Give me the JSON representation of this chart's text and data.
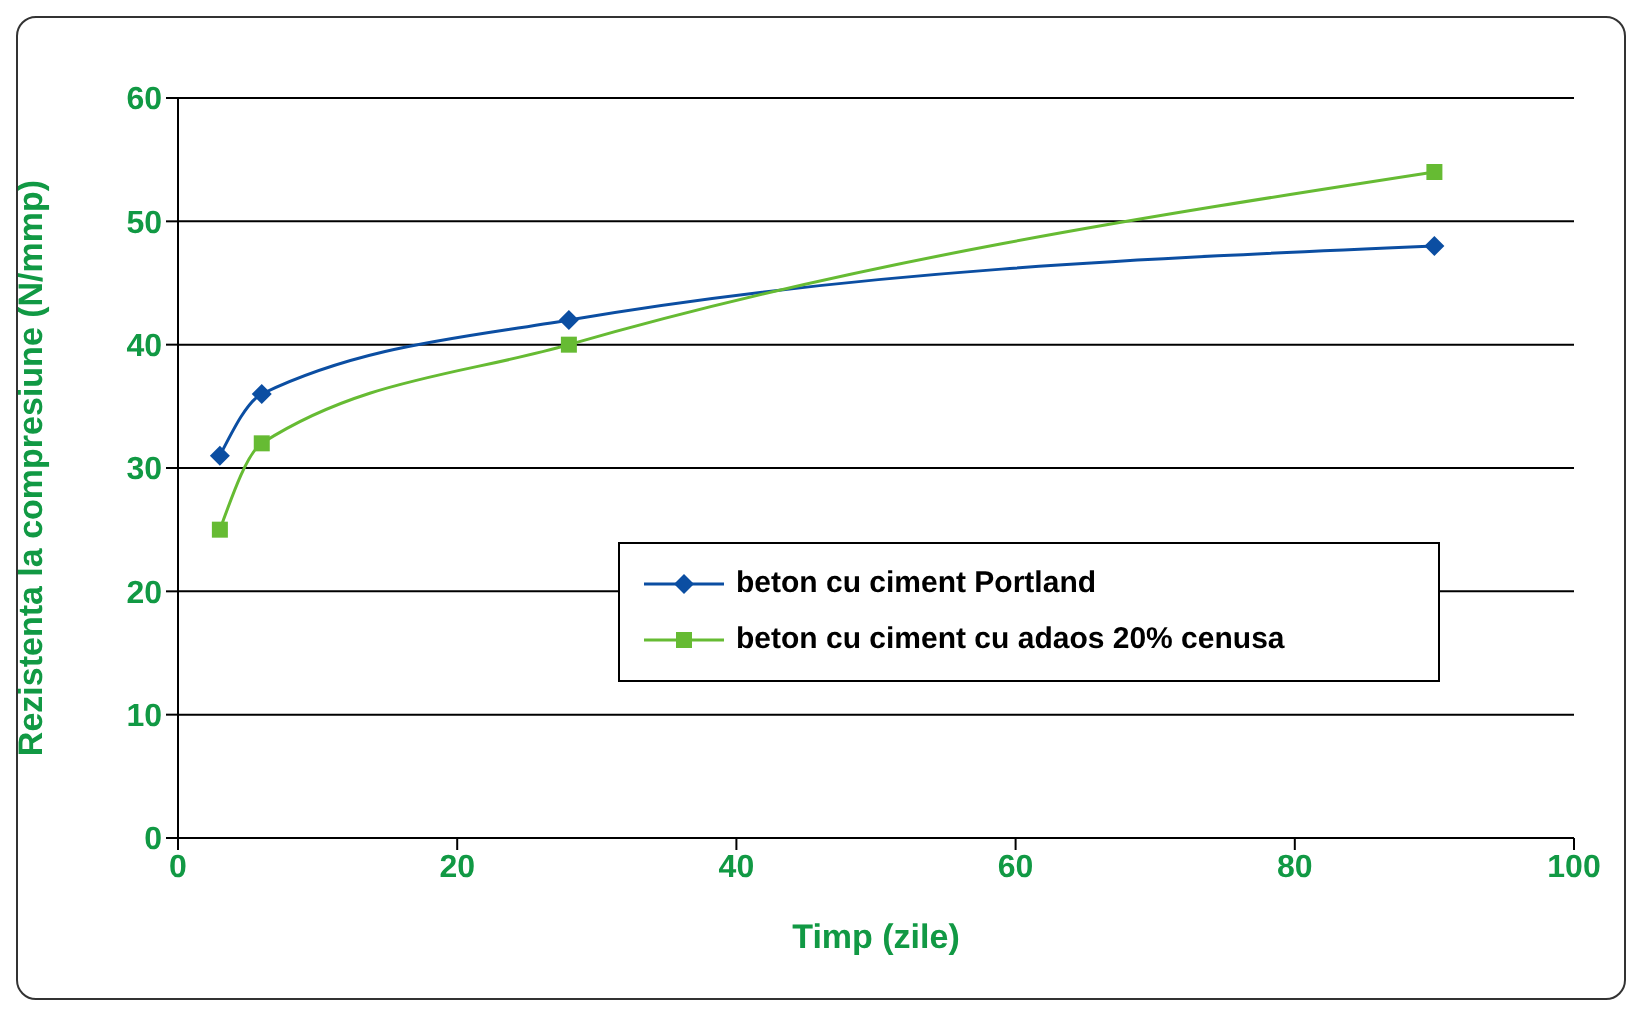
{
  "chart_data": {
    "type": "line",
    "xlabel": "Timp (zile)",
    "ylabel": "Rezistenta la compresiune (N/mmp)",
    "xlim": [
      0,
      100
    ],
    "xticks": [
      0,
      20,
      40,
      60,
      80,
      100
    ],
    "ylim": [
      0,
      60
    ],
    "yticks": [
      0,
      10,
      20,
      30,
      40,
      50,
      60
    ],
    "grid": "y",
    "legend": "center",
    "series": [
      {
        "name": "beton cu ciment Portland",
        "color": "#0b4ea2",
        "marker": "diamond",
        "x": [
          3,
          6,
          28,
          90
        ],
        "values": [
          31,
          36,
          42,
          48
        ]
      },
      {
        "name": "beton cu ciment cu adaos 20% cenusa",
        "color": "#66bb33",
        "marker": "square",
        "x": [
          3,
          6,
          28,
          90
        ],
        "values": [
          25,
          32,
          40,
          54
        ]
      }
    ]
  }
}
